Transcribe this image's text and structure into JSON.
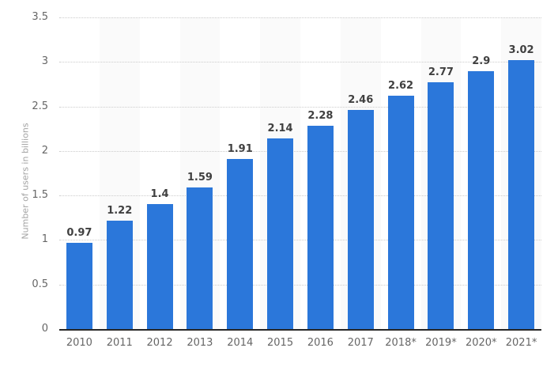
{
  "chart_data": {
    "type": "bar",
    "title": "",
    "categories": [
      "2010",
      "2011",
      "2012",
      "2013",
      "2014",
      "2015",
      "2016",
      "2017",
      "2018*",
      "2019*",
      "2020*",
      "2021*"
    ],
    "values": [
      0.97,
      1.22,
      1.4,
      1.59,
      1.91,
      2.14,
      2.28,
      2.46,
      2.62,
      2.77,
      2.9,
      3.02
    ],
    "value_labels": [
      "0.97",
      "1.22",
      "1.4",
      "1.59",
      "1.91",
      "2.14",
      "2.28",
      "2.46",
      "2.62",
      "2.77",
      "2.9",
      "3.02"
    ],
    "xlabel": "",
    "ylabel": "Number of users in billions",
    "ylim": [
      0,
      3.5
    ],
    "yticks": [
      0,
      0.5,
      1,
      1.5,
      2,
      2.5,
      3,
      3.5
    ],
    "ytick_labels": [
      "0",
      "0.5",
      "1",
      "1.5",
      "2",
      "2.5",
      "3",
      "3.5"
    ],
    "grid": "horizontal-dotted",
    "legend": "none",
    "column_bands": "alternating, behind odd columns starting with 2011",
    "colors": {
      "bar": "#2b77da",
      "value_label": "#404040",
      "tick_label": "#666666",
      "axis_title": "#a4a4a4",
      "gridline": "#cccccc",
      "axis_line": "#262626",
      "band": "#fafafa",
      "background": "#ffffff"
    }
  }
}
